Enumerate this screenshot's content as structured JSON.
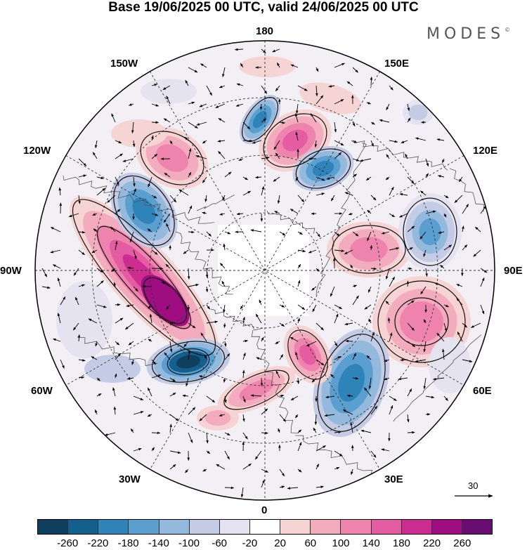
{
  "title": "Base 19/06/2025 00 UTC, valid 24/06/2025 00 UTC",
  "brand": {
    "name": "MODES",
    "mark": "©"
  },
  "map": {
    "projection": "north polar stereographic",
    "longitude_labels": {
      "top": "180",
      "top_right": "150E",
      "upper_right": "120E",
      "right": "90E",
      "lower_right": "60E",
      "bottom_right": "30E",
      "bottom": "0",
      "bottom_left": "30W",
      "lower_left": "60W",
      "left": "90W",
      "upper_left": "120W",
      "top_left": "150W"
    },
    "reference_vector": {
      "label": "30"
    },
    "graticule": "dashed"
  },
  "colorbar": {
    "colors": [
      "#0f3f5e",
      "#135f8e",
      "#2e83b8",
      "#5a9fcf",
      "#93b9dd",
      "#c4cbe4",
      "#e6e3f0",
      "#ffffff",
      "#f6d4d4",
      "#f3acbd",
      "#ee84ad",
      "#e45ca2",
      "#cd2d91",
      "#9e0e80",
      "#6a0d72"
    ],
    "tick_labels": [
      "-260",
      "-220",
      "-180",
      "-140",
      "-100",
      "-60",
      "-20",
      "20",
      "60",
      "100",
      "140",
      "180",
      "220",
      "260"
    ]
  }
}
